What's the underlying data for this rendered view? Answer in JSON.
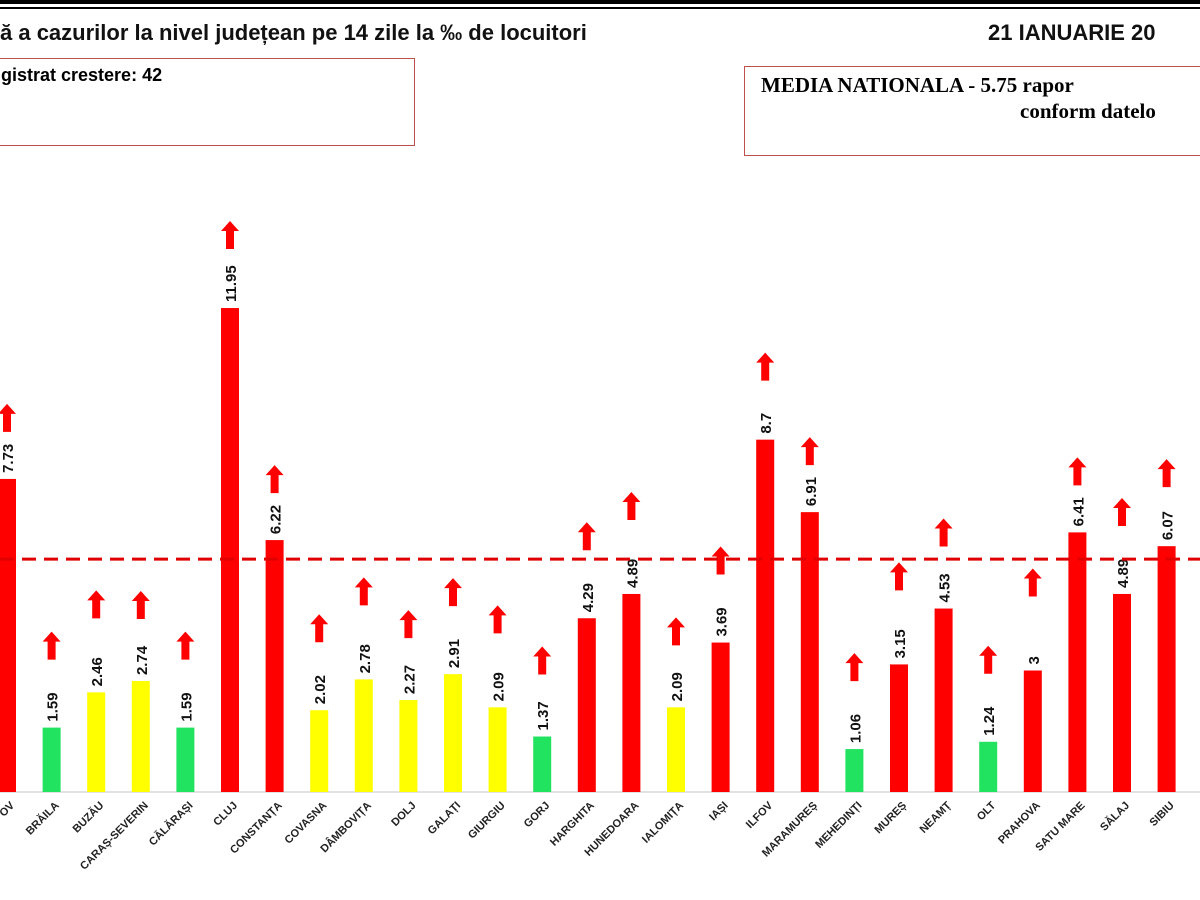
{
  "header": {
    "title": "ă a cazurilor la nivel județean pe 14 zile la ‰ de locuitori",
    "date": "21 IANUARIE 20",
    "left_box": "gistrat crestere: 42",
    "right_box_line1": "MEDIA NATIONALA - 5.75  rapor",
    "right_box_line2": "conform datelo"
  },
  "colors": {
    "red": "#ff0000",
    "yellow": "#ffff00",
    "green": "#22e35f",
    "reference_line": "#e00000"
  },
  "chart_data": {
    "type": "bar",
    "title": "",
    "reference_line": {
      "value": 5.75,
      "style": "dashed"
    },
    "ylim": [
      0,
      12.5
    ],
    "grid": false,
    "categories": [
      "OV",
      "BRĂILA",
      "BUZĂU",
      "CARAȘ-SEVERIN",
      "CĂLĂRAȘI",
      "CLUJ",
      "CONSTANȚA",
      "COVASNA",
      "DÂMBOVIȚA",
      "DOLJ",
      "GALAȚI",
      "GIURGIU",
      "GORJ",
      "HARGHITA",
      "HUNEDOARA",
      "IALOMIȚA",
      "IAȘI",
      "ILFOV",
      "MARAMUREȘ",
      "MEHEDINȚI",
      "MUREȘ",
      "NEAMȚ",
      "OLT",
      "PRAHOVA",
      "SATU MARE",
      "SĂLAJ",
      "SIBIU"
    ],
    "values": [
      7.73,
      1.59,
      2.46,
      2.74,
      1.59,
      11.95,
      6.22,
      2.02,
      2.78,
      2.27,
      2.91,
      2.09,
      1.37,
      4.29,
      4.89,
      2.09,
      3.69,
      8.7,
      6.91,
      1.06,
      3.15,
      4.53,
      1.24,
      3,
      6.41,
      4.89,
      6.07
    ],
    "labels": [
      "7.73",
      "1.59",
      "2.46",
      "2.74",
      "1.59",
      "11.95",
      "6.22",
      "2.02",
      "2.78",
      "2.27",
      "2.91",
      "2.09",
      "1.37",
      "4.29",
      "4.89",
      "2.09",
      "3.69",
      "8.7",
      "6.91",
      "1.06",
      "3.15",
      "4.53",
      "1.24",
      "3",
      "6.41",
      "4.89",
      "6.07"
    ],
    "bar_colors": [
      "red",
      "green",
      "yellow",
      "yellow",
      "green",
      "red",
      "red",
      "yellow",
      "yellow",
      "yellow",
      "yellow",
      "yellow",
      "green",
      "red",
      "red",
      "yellow",
      "red",
      "red",
      "red",
      "green",
      "red",
      "red",
      "green",
      "red",
      "red",
      "red",
      "red"
    ],
    "trend": "up-arrow on every county"
  }
}
